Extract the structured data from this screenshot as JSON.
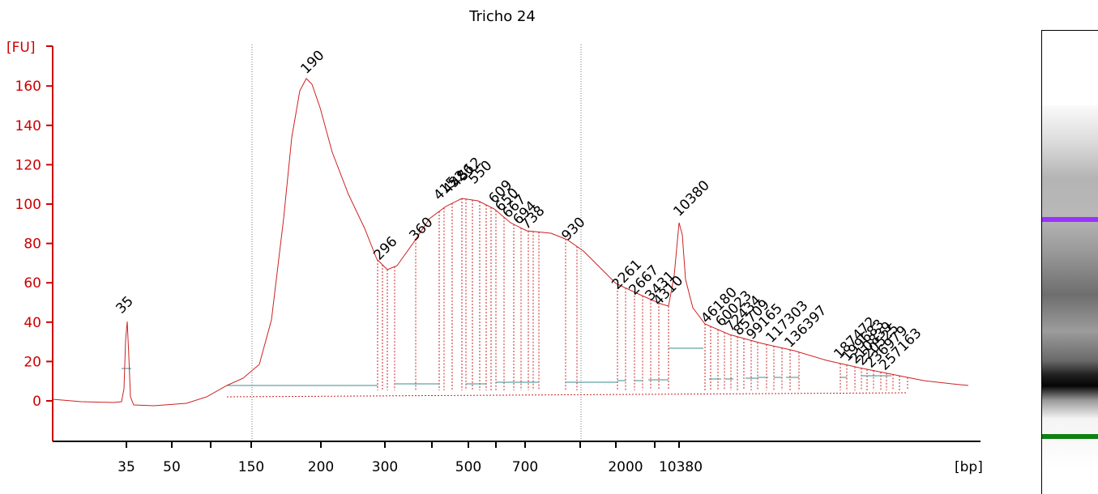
{
  "chart_data": {
    "type": "line",
    "title": "Tricho 24",
    "ylabel": "[FU]",
    "xlabel": "[bp]",
    "ylim": [
      -20,
      170
    ],
    "yticks": [
      0,
      20,
      40,
      60,
      80,
      100,
      120,
      140,
      160
    ],
    "xtick_labels": [
      "35",
      "50",
      "150",
      "200",
      "300",
      "500",
      "700",
      "2000",
      "10380"
    ],
    "grid": false,
    "colors": {
      "trace": "#cc2222",
      "axis": "#cc0000",
      "lower_marker": "#008800",
      "upper_marker": "#9933ff",
      "baseline": "#3c8c8c"
    },
    "peaks": {
      "lower_marker": "35",
      "upper_marker": "10380",
      "labels": [
        "190",
        "296",
        "360",
        "415",
        "452",
        "486",
        "512",
        "550",
        "609",
        "650",
        "667",
        "694",
        "738",
        "930",
        "2261",
        "2667",
        "3431",
        "4310",
        "46180",
        "60023",
        "72434",
        "85709",
        "99165",
        "117303",
        "136397",
        "187472",
        "199683",
        "210839",
        "220525",
        "236979",
        "257163"
      ]
    }
  }
}
